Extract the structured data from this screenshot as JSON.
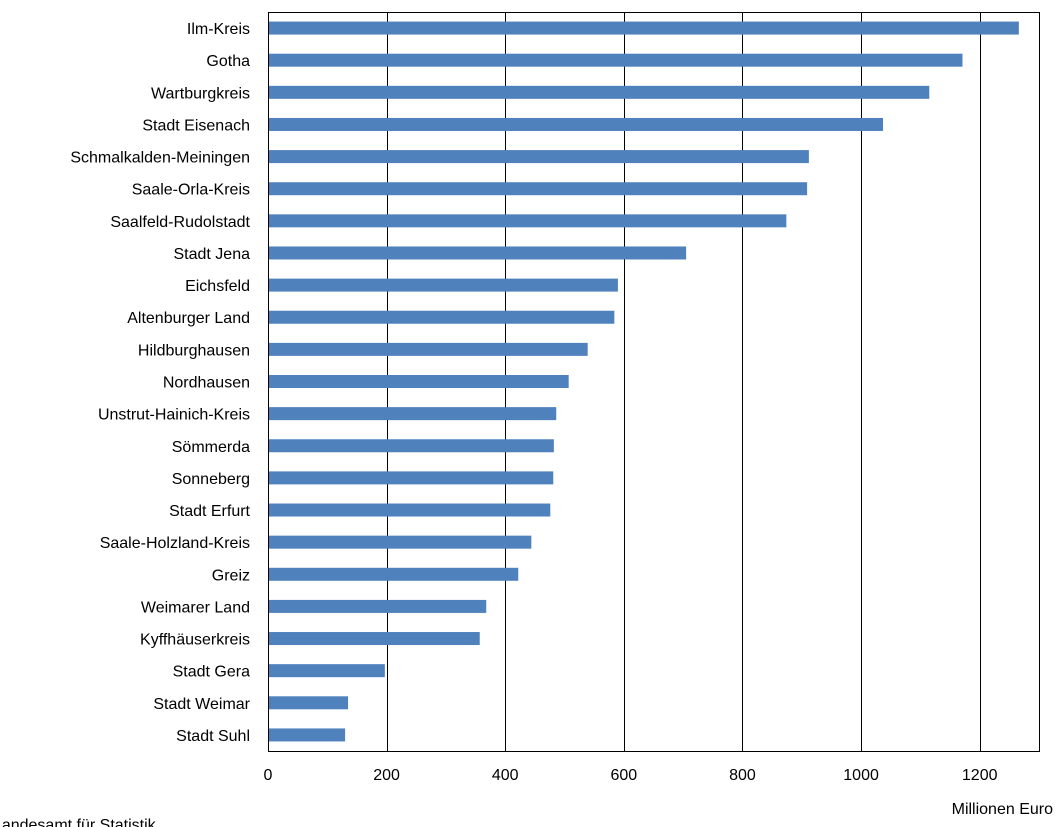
{
  "chart_data": {
    "type": "bar",
    "orientation": "horizontal",
    "categories": [
      "Ilm-Kreis",
      "Gotha",
      "Wartburgkreis",
      "Stadt Eisenach",
      "Schmalkalden-Meiningen",
      "Saale-Orla-Kreis",
      "Saalfeld-Rudolstadt",
      "Stadt Jena",
      "Eichsfeld",
      "Altenburger Land",
      "Hildburghausen",
      "Nordhausen",
      "Unstrut-Hainich-Kreis",
      "Sömmerda",
      "Sonneberg",
      "Stadt Erfurt",
      "Saale-Holzland-Kreis",
      "Greiz",
      "Weimarer Land",
      "Kyffhäuserkreis",
      "Stadt Gera",
      "Stadt Weimar",
      "Stadt Suhl"
    ],
    "values": [
      1266,
      1171,
      1115,
      1037,
      912,
      909,
      874,
      705,
      590,
      584,
      539,
      507,
      486,
      482,
      481,
      476,
      444,
      422,
      368,
      357,
      197,
      135,
      130
    ],
    "xlim": [
      0,
      1300
    ],
    "xticks": [
      0,
      200,
      400,
      600,
      800,
      1000,
      1200
    ],
    "unit_label": "Millionen Euro",
    "source_label": "Thüringer Landesamt für Statistik",
    "grid": "vertical",
    "bar_color": "#4f81bd",
    "grid_color": "#000000"
  }
}
